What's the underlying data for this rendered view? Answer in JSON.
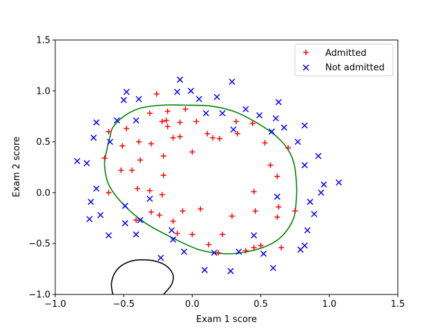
{
  "chart_data": {
    "type": "scatter",
    "title": "",
    "xlabel": "Exam 1 score",
    "ylabel": "Exam 2 score",
    "xlim": [
      -1.0,
      1.5
    ],
    "ylim": [
      -1.0,
      1.5
    ],
    "xticks": [
      -1.0,
      -0.5,
      0.0,
      0.5,
      1.0,
      1.5
    ],
    "yticks": [
      -1.0,
      -0.5,
      0.0,
      0.5,
      1.0,
      1.5
    ],
    "xtick_labels": [
      "−1.0",
      "−0.5",
      "0.0",
      "0.5",
      "1.0",
      "1.5"
    ],
    "ytick_labels": [
      "−1.0",
      "−0.5",
      "0.0",
      "0.5",
      "1.0",
      "1.5"
    ],
    "grid": false,
    "legend_position": "top-right",
    "series": [
      {
        "name": "Admitted",
        "marker": "plus",
        "color": "#ff0000",
        "points": [
          [
            -0.26,
            0.97
          ],
          [
            -0.05,
            0.82
          ],
          [
            -0.31,
            0.78
          ],
          [
            -0.18,
            0.8
          ],
          [
            -0.22,
            0.7
          ],
          [
            -0.19,
            0.71
          ],
          [
            -0.18,
            0.65
          ],
          [
            -0.09,
            0.69
          ],
          [
            0.03,
            0.7
          ],
          [
            0.32,
            0.7
          ],
          [
            0.44,
            0.68
          ],
          [
            -0.61,
            0.6
          ],
          [
            -0.48,
            0.63
          ],
          [
            -0.39,
            0.5
          ],
          [
            -0.3,
            0.48
          ],
          [
            -0.14,
            0.54
          ],
          [
            -0.09,
            0.55
          ],
          [
            0.11,
            0.58
          ],
          [
            0.15,
            0.54
          ],
          [
            0.2,
            0.53
          ],
          [
            0.33,
            0.58
          ],
          [
            0.53,
            0.49
          ],
          [
            0.7,
            0.44
          ],
          [
            -0.51,
            0.46
          ],
          [
            -0.64,
            0.34
          ],
          [
            -0.52,
            0.22
          ],
          [
            -0.44,
            0.22
          ],
          [
            -0.38,
            0.32
          ],
          [
            -0.21,
            0.36
          ],
          [
            0.0,
            0.4
          ],
          [
            0.57,
            0.27
          ],
          [
            -0.21,
            0.17
          ],
          [
            0.62,
            0.16
          ],
          [
            -0.61,
            0.0
          ],
          [
            -0.4,
            0.04
          ],
          [
            -0.31,
            0.02
          ],
          [
            -0.22,
            -0.02
          ],
          [
            0.45,
            0.01
          ],
          [
            0.63,
            -0.14
          ],
          [
            -0.07,
            -0.18
          ],
          [
            0.06,
            -0.16
          ],
          [
            0.46,
            -0.18
          ],
          [
            0.75,
            -0.18
          ],
          [
            -0.3,
            -0.19
          ],
          [
            -0.24,
            -0.22
          ],
          [
            0.29,
            -0.23
          ],
          [
            0.62,
            -0.24
          ],
          [
            -0.41,
            -0.27
          ],
          [
            -0.14,
            -0.28
          ],
          [
            -0.11,
            -0.4
          ],
          [
            0.0,
            -0.41
          ],
          [
            0.22,
            -0.41
          ],
          [
            0.12,
            -0.51
          ],
          [
            0.45,
            -0.54
          ],
          [
            0.5,
            -0.52
          ],
          [
            0.65,
            -0.54
          ],
          [
            0.19,
            -0.59
          ],
          [
            0.39,
            -0.57
          ]
        ]
      },
      {
        "name": "Not admitted",
        "marker": "x",
        "color": "#0000ff",
        "points": [
          [
            -0.09,
            1.11
          ],
          [
            -0.11,
            0.99
          ],
          [
            -0.01,
            1.0
          ],
          [
            0.29,
            1.09
          ],
          [
            -0.5,
            0.91
          ],
          [
            -0.48,
            0.99
          ],
          [
            -0.39,
            0.92
          ],
          [
            0.05,
            0.92
          ],
          [
            0.18,
            0.94
          ],
          [
            0.63,
            0.89
          ],
          [
            0.39,
            0.82
          ],
          [
            0.49,
            0.76
          ],
          [
            0.1,
            0.78
          ],
          [
            0.22,
            0.78
          ],
          [
            -0.7,
            0.69
          ],
          [
            -0.55,
            0.71
          ],
          [
            -0.41,
            0.71
          ],
          [
            0.61,
            0.73
          ],
          [
            0.67,
            0.64
          ],
          [
            0.3,
            0.62
          ],
          [
            0.58,
            0.6
          ],
          [
            0.82,
            0.66
          ],
          [
            -0.72,
            0.54
          ],
          [
            -0.6,
            0.5
          ],
          [
            0.77,
            0.5
          ],
          [
            -0.84,
            0.31
          ],
          [
            -0.77,
            0.29
          ],
          [
            0.82,
            0.27
          ],
          [
            0.92,
            0.36
          ],
          [
            1.07,
            0.1
          ],
          [
            -0.7,
            0.04
          ],
          [
            0.96,
            0.08
          ],
          [
            0.94,
            0.0
          ],
          [
            -0.74,
            -0.09
          ],
          [
            0.62,
            -0.04
          ],
          [
            -0.31,
            -0.06
          ],
          [
            0.86,
            -0.09
          ],
          [
            -0.49,
            -0.13
          ],
          [
            -0.67,
            -0.22
          ],
          [
            0.89,
            -0.21
          ],
          [
            -0.75,
            -0.26
          ],
          [
            -0.38,
            -0.27
          ],
          [
            -0.49,
            -0.3
          ],
          [
            0.84,
            -0.37
          ],
          [
            -0.15,
            -0.37
          ],
          [
            -0.61,
            -0.42
          ],
          [
            -0.41,
            -0.41
          ],
          [
            0.45,
            -0.42
          ],
          [
            -0.14,
            -0.46
          ],
          [
            0.82,
            -0.52
          ],
          [
            0.79,
            -0.56
          ],
          [
            0.16,
            -0.59
          ],
          [
            0.52,
            -0.6
          ],
          [
            0.34,
            -0.58
          ],
          [
            -0.06,
            -0.58
          ],
          [
            -0.23,
            -0.64
          ],
          [
            0.59,
            -0.74
          ],
          [
            0.09,
            -0.76
          ],
          [
            0.28,
            -0.77
          ]
        ]
      }
    ],
    "decision_boundary": [
      {
        "color": "#008000",
        "points": [
          [
            -0.6,
            0.55
          ],
          [
            -0.58,
            0.64
          ],
          [
            -0.5,
            0.75
          ],
          [
            -0.38,
            0.83
          ],
          [
            -0.22,
            0.86
          ],
          [
            -0.04,
            0.86
          ],
          [
            0.14,
            0.85
          ],
          [
            0.3,
            0.8
          ],
          [
            0.44,
            0.71
          ],
          [
            0.58,
            0.59
          ],
          [
            0.68,
            0.46
          ],
          [
            0.74,
            0.3
          ],
          [
            0.76,
            0.1
          ],
          [
            0.76,
            -0.05
          ],
          [
            0.74,
            -0.25
          ],
          [
            0.66,
            -0.42
          ],
          [
            0.55,
            -0.52
          ],
          [
            0.4,
            -0.58
          ],
          [
            0.24,
            -0.6
          ],
          [
            0.05,
            -0.56
          ],
          [
            -0.15,
            -0.44
          ],
          [
            -0.34,
            -0.3
          ],
          [
            -0.5,
            -0.12
          ],
          [
            -0.61,
            0.08
          ],
          [
            -0.64,
            0.28
          ],
          [
            -0.62,
            0.44
          ]
        ]
      },
      {
        "color": "#000000",
        "points": [
          [
            -0.58,
            -1.0
          ],
          [
            -0.59,
            -0.9
          ],
          [
            -0.57,
            -0.8
          ],
          [
            -0.52,
            -0.72
          ],
          [
            -0.44,
            -0.67
          ],
          [
            -0.34,
            -0.66
          ],
          [
            -0.25,
            -0.68
          ],
          [
            -0.18,
            -0.73
          ],
          [
            -0.14,
            -0.81
          ],
          [
            -0.15,
            -0.9
          ],
          [
            -0.19,
            -0.97
          ],
          [
            -0.21,
            -1.0
          ]
        ]
      }
    ]
  }
}
